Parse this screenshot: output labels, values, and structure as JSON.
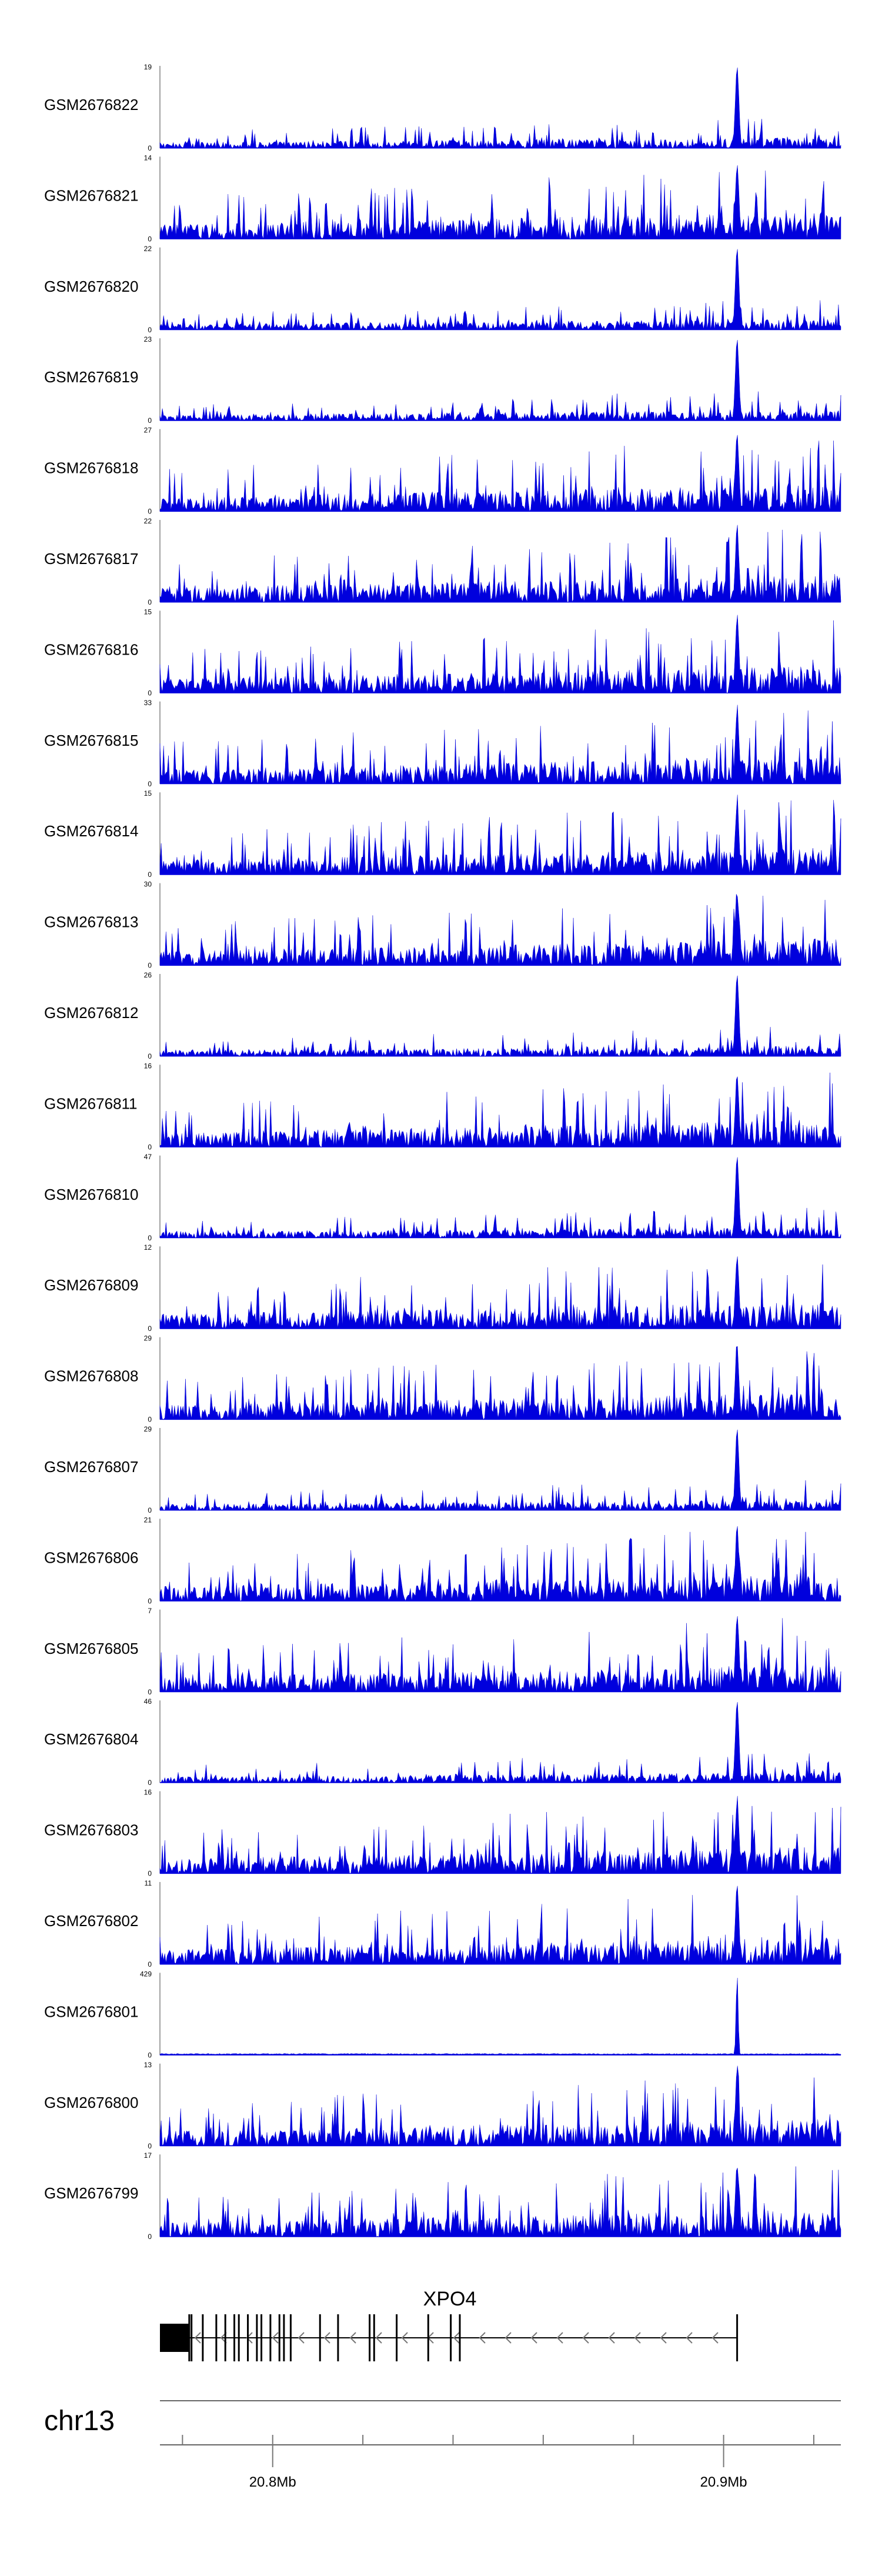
{
  "chart_data": {
    "type": "area",
    "title": "",
    "chromosome": "chr13",
    "x_range_mb": [
      20.775,
      20.926
    ],
    "x_ticks_mb": [
      20.8,
      20.9
    ],
    "x_tick_labels": [
      "20.8Mb",
      "20.9Mb"
    ],
    "peak_position_mb": 20.903,
    "color": "#0000dd",
    "gene": {
      "name": "XPO4",
      "start_mb": 20.775,
      "end_mb": 20.903,
      "strand": "-",
      "exon_positions_mb": [
        20.775,
        20.7815,
        20.782,
        20.7845,
        20.7875,
        20.7895,
        20.7915,
        20.7925,
        20.7945,
        20.7965,
        20.7975,
        20.7995,
        20.8015,
        20.8025,
        20.804,
        20.8105,
        20.8145,
        20.8215,
        20.8225,
        20.8275,
        20.8345,
        20.8395,
        20.8415,
        20.903
      ]
    },
    "series": [
      {
        "name": "GSM2676822",
        "ymin": 0,
        "ymax": 19
      },
      {
        "name": "GSM2676821",
        "ymin": 0,
        "ymax": 14
      },
      {
        "name": "GSM2676820",
        "ymin": 0,
        "ymax": 22
      },
      {
        "name": "GSM2676819",
        "ymin": 0,
        "ymax": 23
      },
      {
        "name": "GSM2676818",
        "ymin": 0,
        "ymax": 27
      },
      {
        "name": "GSM2676817",
        "ymin": 0,
        "ymax": 22
      },
      {
        "name": "GSM2676816",
        "ymin": 0,
        "ymax": 15
      },
      {
        "name": "GSM2676815",
        "ymin": 0,
        "ymax": 33
      },
      {
        "name": "GSM2676814",
        "ymin": 0,
        "ymax": 15
      },
      {
        "name": "GSM2676813",
        "ymin": 0,
        "ymax": 30
      },
      {
        "name": "GSM2676812",
        "ymin": 0,
        "ymax": 26
      },
      {
        "name": "GSM2676811",
        "ymin": 0,
        "ymax": 16
      },
      {
        "name": "GSM2676810",
        "ymin": 0,
        "ymax": 47
      },
      {
        "name": "GSM2676809",
        "ymin": 0,
        "ymax": 12
      },
      {
        "name": "GSM2676808",
        "ymin": 0,
        "ymax": 29
      },
      {
        "name": "GSM2676807",
        "ymin": 0,
        "ymax": 29
      },
      {
        "name": "GSM2676806",
        "ymin": 0,
        "ymax": 21
      },
      {
        "name": "GSM2676805",
        "ymin": 0,
        "ymax": 7
      },
      {
        "name": "GSM2676804",
        "ymin": 0,
        "ymax": 46
      },
      {
        "name": "GSM2676803",
        "ymin": 0,
        "ymax": 16
      },
      {
        "name": "GSM2676802",
        "ymin": 0,
        "ymax": 11
      },
      {
        "name": "GSM2676801",
        "ymin": 0,
        "ymax": 429
      },
      {
        "name": "GSM2676800",
        "ymin": 0,
        "ymax": 13
      },
      {
        "name": "GSM2676799",
        "ymin": 0,
        "ymax": 17
      }
    ]
  }
}
